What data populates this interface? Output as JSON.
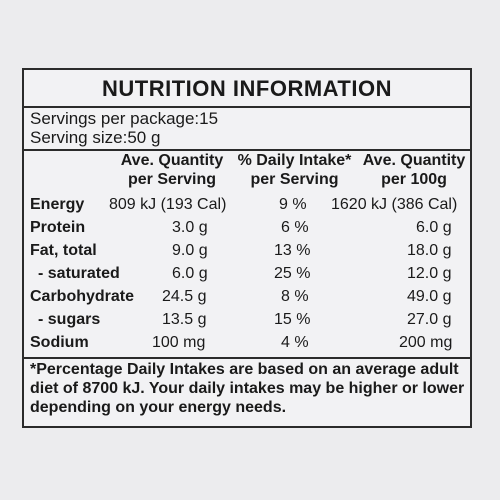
{
  "title": "NUTRITION INFORMATION",
  "servings_per_package": "Servings per package:15",
  "serving_size": "Serving size:50 g",
  "headers": {
    "col1_line1": "Ave. Quantity",
    "col1_line2": "per Serving",
    "col2_line1": "% Daily Intake*",
    "col2_line2": "per Serving",
    "col3_line1": "Ave. Quantity",
    "col3_line2": "per 100g"
  },
  "rows": [
    {
      "label": "Energy",
      "per_serving": "809  kJ (193 Cal)",
      "daily_intake": "9 %",
      "per_100g": "1620 kJ (386 Cal)"
    },
    {
      "label": "Protein",
      "per_serving": "3.0 g",
      "daily_intake": "6 %",
      "per_100g": "6.0 g"
    },
    {
      "label": "Fat, total",
      "per_serving": "9.0 g",
      "daily_intake": "13 %",
      "per_100g": "18.0 g"
    },
    {
      "label": "- saturated",
      "per_serving": "6.0 g",
      "daily_intake": "25 %",
      "per_100g": "12.0 g"
    },
    {
      "label": "Carbohydrate",
      "per_serving": "24.5 g",
      "daily_intake": "8 %",
      "per_100g": "49.0 g"
    },
    {
      "label": "- sugars",
      "per_serving": "13.5 g",
      "daily_intake": "15 %",
      "per_100g": "27.0 g"
    },
    {
      "label": "Sodium",
      "per_serving": "100 mg",
      "daily_intake": "4 %",
      "per_100g": "200 mg"
    }
  ],
  "footnote": "*Percentage Daily Intakes are based on an average adult diet of 8700 kJ. Your daily intakes may be higher or lower depending on your energy needs."
}
